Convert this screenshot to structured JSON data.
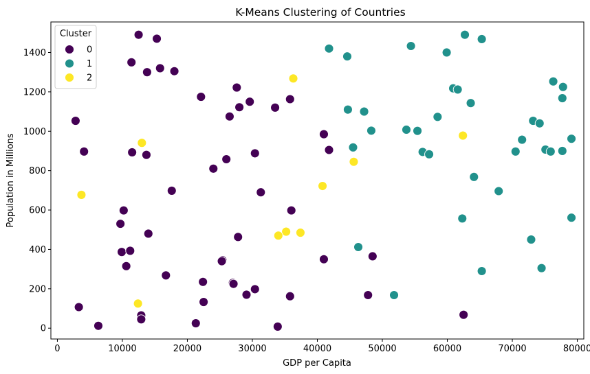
{
  "chart_data": {
    "type": "scatter",
    "title": "K-Means Clustering of Countries",
    "xlabel": "GDP per Capita",
    "ylabel": "Population in Millions",
    "xlim": [
      -1000,
      81000
    ],
    "ylim": [
      -55,
      1555
    ],
    "xticks": [
      0,
      10000,
      20000,
      30000,
      40000,
      50000,
      60000,
      70000,
      80000
    ],
    "yticks": [
      0,
      200,
      400,
      600,
      800,
      1000,
      1200,
      1400
    ],
    "grid": false,
    "legend": {
      "title": "Cluster",
      "position": "top-left"
    },
    "series": [
      {
        "name": "0",
        "color": "#440154",
        "points": [
          [
            12500,
            1490
          ],
          [
            15300,
            1470
          ],
          [
            11400,
            1350
          ],
          [
            13800,
            1300
          ],
          [
            15800,
            1320
          ],
          [
            18000,
            1305
          ],
          [
            22100,
            1175
          ],
          [
            27600,
            1222
          ],
          [
            28000,
            1122
          ],
          [
            29600,
            1150
          ],
          [
            33500,
            1120
          ],
          [
            35800,
            1163
          ],
          [
            26500,
            1075
          ],
          [
            2800,
            1053
          ],
          [
            4100,
            897
          ],
          [
            11500,
            893
          ],
          [
            13700,
            880
          ],
          [
            24000,
            810
          ],
          [
            26000,
            858
          ],
          [
            30400,
            888
          ],
          [
            41000,
            985
          ],
          [
            41800,
            905
          ],
          [
            17600,
            698
          ],
          [
            31300,
            690
          ],
          [
            10200,
            598
          ],
          [
            36000,
            598
          ],
          [
            9700,
            530
          ],
          [
            14000,
            480
          ],
          [
            27800,
            463
          ],
          [
            9900,
            387
          ],
          [
            11200,
            393
          ],
          [
            10600,
            315
          ],
          [
            25400,
            345
          ],
          [
            25300,
            340
          ],
          [
            41000,
            350
          ],
          [
            48500,
            365
          ],
          [
            16700,
            268
          ],
          [
            22400,
            235
          ],
          [
            27000,
            230
          ],
          [
            27100,
            225
          ],
          [
            30400,
            198
          ],
          [
            29100,
            170
          ],
          [
            35800,
            162
          ],
          [
            47800,
            168
          ],
          [
            22500,
            133
          ],
          [
            3300,
            107
          ],
          [
            12900,
            65
          ],
          [
            12900,
            45
          ],
          [
            6300,
            12
          ],
          [
            21300,
            25
          ],
          [
            33900,
            8
          ],
          [
            62500,
            68
          ]
        ]
      },
      {
        "name": "1",
        "color": "#21918c",
        "points": [
          [
            41800,
            1420
          ],
          [
            44600,
            1380
          ],
          [
            54400,
            1433
          ],
          [
            59900,
            1400
          ],
          [
            62700,
            1490
          ],
          [
            65300,
            1468
          ],
          [
            60900,
            1218
          ],
          [
            61600,
            1212
          ],
          [
            63600,
            1143
          ],
          [
            76300,
            1253
          ],
          [
            77800,
            1225
          ],
          [
            77700,
            1168
          ],
          [
            44700,
            1110
          ],
          [
            47200,
            1100
          ],
          [
            48300,
            1003
          ],
          [
            53700,
            1008
          ],
          [
            55400,
            1002
          ],
          [
            58500,
            1073
          ],
          [
            45500,
            918
          ],
          [
            56200,
            895
          ],
          [
            57200,
            883
          ],
          [
            73200,
            1053
          ],
          [
            74200,
            1040
          ],
          [
            71500,
            957
          ],
          [
            70500,
            897
          ],
          [
            75100,
            907
          ],
          [
            75900,
            897
          ],
          [
            77700,
            900
          ],
          [
            79100,
            962
          ],
          [
            64100,
            768
          ],
          [
            67900,
            696
          ],
          [
            62300,
            557
          ],
          [
            79100,
            561
          ],
          [
            72900,
            450
          ],
          [
            74500,
            305
          ],
          [
            65300,
            290
          ],
          [
            46300,
            412
          ],
          [
            51800,
            168
          ]
        ]
      },
      {
        "name": "2",
        "color": "#fde725",
        "points": [
          [
            36300,
            1268
          ],
          [
            13000,
            941
          ],
          [
            62400,
            978
          ],
          [
            45600,
            845
          ],
          [
            3700,
            677
          ],
          [
            40800,
            722
          ],
          [
            35200,
            490
          ],
          [
            37400,
            485
          ],
          [
            34000,
            470
          ],
          [
            12400,
            125
          ]
        ]
      }
    ]
  }
}
